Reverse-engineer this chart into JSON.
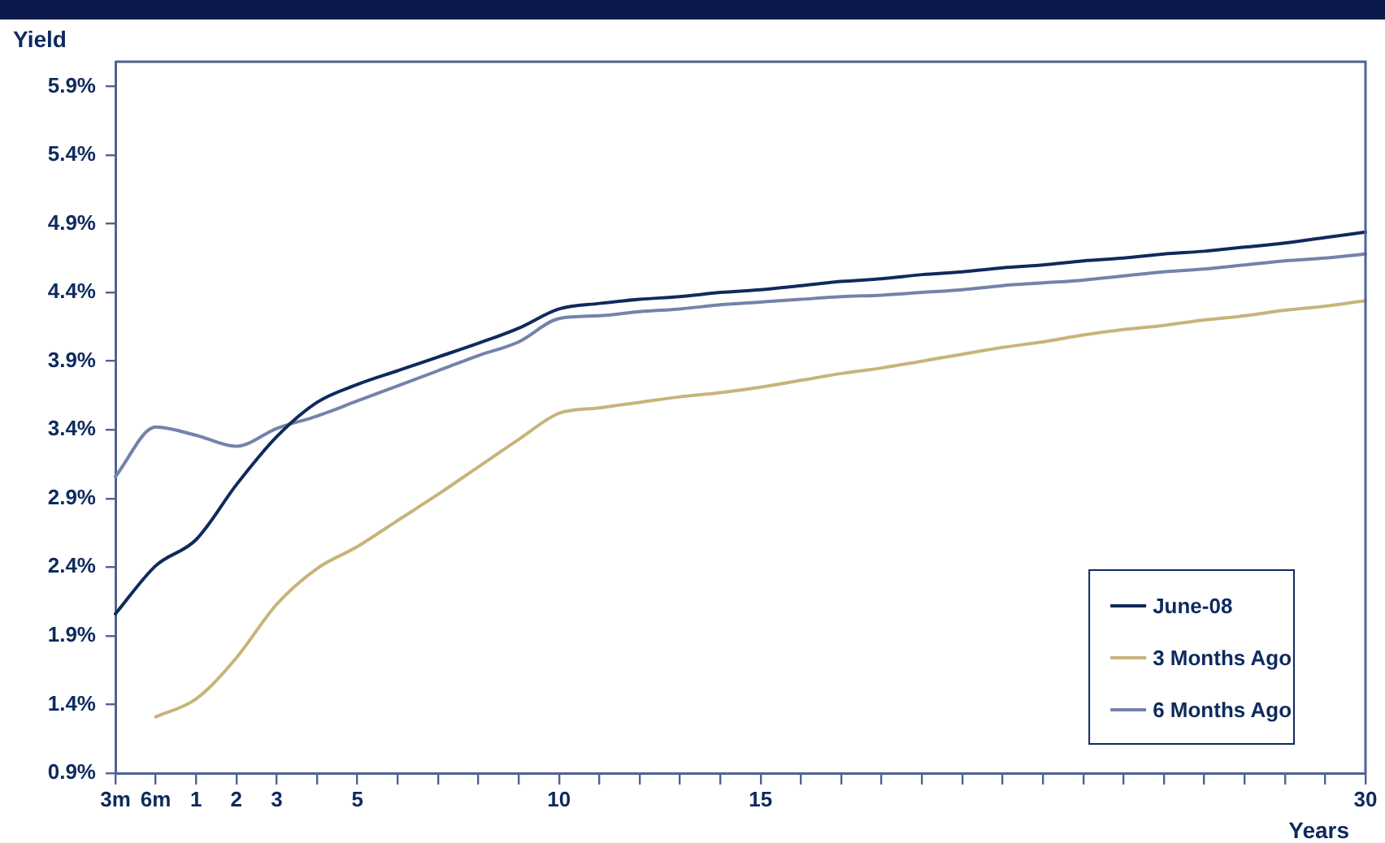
{
  "chart_data": {
    "type": "line",
    "ylabel": "Yield",
    "xlabel": "Years",
    "ylim": [
      0.9,
      6.08
    ],
    "categories": [
      "3m",
      "6m",
      "1",
      "2",
      "3",
      null,
      "5",
      null,
      null,
      null,
      null,
      "10",
      null,
      null,
      null,
      null,
      "15",
      null,
      null,
      null,
      null,
      null,
      null,
      null,
      null,
      null,
      null,
      null,
      null,
      null,
      null,
      "30"
    ],
    "yticks": [
      {
        "value": 0.9,
        "label": "0.9%"
      },
      {
        "value": 1.4,
        "label": "1.4%"
      },
      {
        "value": 1.9,
        "label": "1.9%"
      },
      {
        "value": 2.4,
        "label": "2.4%"
      },
      {
        "value": 2.9,
        "label": "2.9%"
      },
      {
        "value": 3.4,
        "label": "3.4%"
      },
      {
        "value": 3.9,
        "label": "3.9%"
      },
      {
        "value": 4.4,
        "label": "4.4%"
      },
      {
        "value": 4.9,
        "label": "4.9%"
      },
      {
        "value": 5.4,
        "label": "5.4%"
      },
      {
        "value": 5.9,
        "label": "5.9%"
      }
    ],
    "grid": false,
    "legend": "bottom right",
    "marker": "none",
    "line_style": "solid",
    "series": [
      {
        "name": "June-08",
        "color": "#0f2a5c",
        "values": [
          2.06,
          2.41,
          2.6,
          3.0,
          3.35,
          3.6,
          3.73,
          3.83,
          3.93,
          4.03,
          4.14,
          4.28,
          4.32,
          4.35,
          4.37,
          4.4,
          4.42,
          4.45,
          4.48,
          4.5,
          4.53,
          4.55,
          4.58,
          4.6,
          4.63,
          4.65,
          4.68,
          4.7,
          4.73,
          4.76,
          4.8,
          4.84
        ]
      },
      {
        "name": "3 Months Ago",
        "color": "#c8b47a",
        "values": [
          null,
          1.31,
          1.44,
          1.74,
          2.13,
          2.39,
          2.55,
          2.74,
          2.93,
          3.13,
          3.33,
          3.52,
          3.56,
          3.6,
          3.64,
          3.67,
          3.71,
          3.76,
          3.81,
          3.85,
          3.9,
          3.95,
          4.0,
          4.04,
          4.09,
          4.13,
          4.16,
          4.2,
          4.23,
          4.27,
          4.3,
          4.34
        ]
      },
      {
        "name": "6 Months Ago",
        "color": "#7482ab",
        "values": [
          3.06,
          3.42,
          3.36,
          3.28,
          3.41,
          3.5,
          3.61,
          3.72,
          3.83,
          3.94,
          4.04,
          4.21,
          4.23,
          4.26,
          4.28,
          4.31,
          4.33,
          4.35,
          4.37,
          4.38,
          4.4,
          4.42,
          4.45,
          4.47,
          4.49,
          4.52,
          4.55,
          4.57,
          4.6,
          4.63,
          4.65,
          4.68
        ]
      }
    ]
  }
}
